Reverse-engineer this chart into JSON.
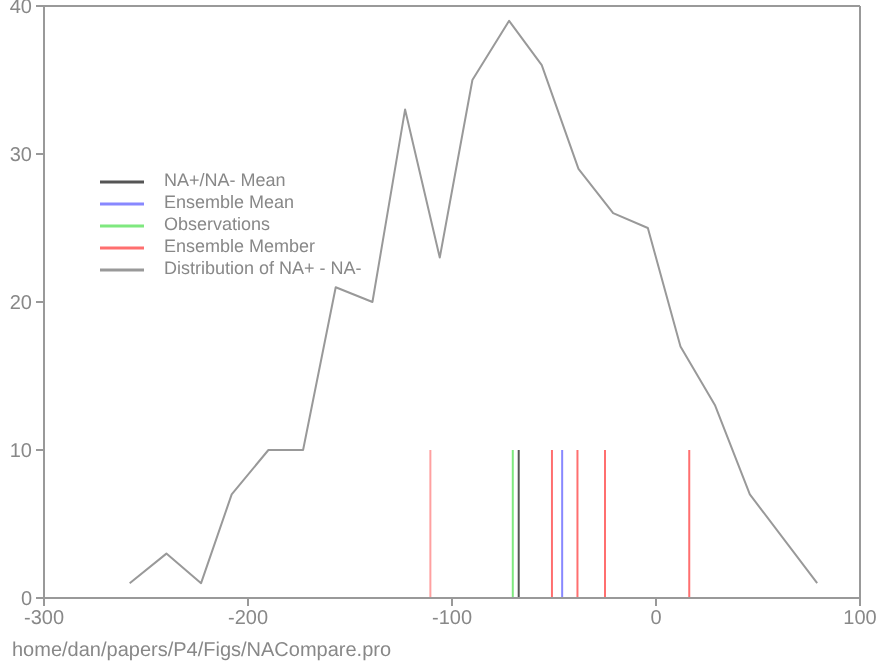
{
  "chart_data": {
    "type": "line",
    "xlim": [
      -300,
      100
    ],
    "xticks": [
      -300,
      -200,
      -100,
      0,
      100
    ],
    "ylim": [
      0,
      40
    ],
    "yticks": [
      0,
      10,
      20,
      30,
      40
    ],
    "legend": "top left",
    "marker": "none",
    "line_style": "solid",
    "annotations": [
      "home/dan/papers/P4/Figs/NACompare.pro"
    ],
    "series": [
      {
        "name": "NA+/NA- Mean",
        "color": "#555555",
        "x": [
          -67.3,
          -67.3
        ],
        "values": [
          0,
          10
        ]
      },
      {
        "name": "Ensemble Mean",
        "color": "#8888ff",
        "x": [
          -46,
          -46
        ],
        "values": [
          0,
          10
        ]
      },
      {
        "name": "Observations",
        "color": "#7fe87f",
        "x": [
          -70.2,
          -70.2
        ],
        "values": [
          0,
          10
        ]
      },
      {
        "name": "Ensemble Member",
        "color": "#ff6f6f",
        "x": [
          -51,
          -51
        ],
        "values": [
          0,
          10
        ]
      },
      {
        "color": "#ffa0a0",
        "x": [
          -110.6,
          -110.6
        ],
        "values": [
          0,
          10
        ]
      },
      {
        "color": "#ff6f6f",
        "x": [
          -38.5,
          -38.5
        ],
        "values": [
          0,
          10
        ]
      },
      {
        "color": "#ff6f6f",
        "x": [
          -25,
          -25
        ],
        "values": [
          0,
          10
        ]
      },
      {
        "color": "#ff6f6f",
        "x": [
          16.3,
          16.3
        ],
        "values": [
          0,
          10
        ]
      },
      {
        "name": "Distribution of NA+ - NA-",
        "color": "#999999",
        "x": [
          -258,
          -240,
          -223,
          -208,
          -190,
          -173,
          -157,
          -139,
          -123,
          -106,
          -90,
          -72,
          -56,
          -38,
          -21,
          -4,
          12,
          29,
          46,
          79
        ],
        "values": [
          1,
          3,
          1,
          7,
          10,
          10,
          21,
          20,
          33,
          23,
          35,
          39,
          36,
          29,
          26,
          25,
          17,
          13,
          7,
          1
        ]
      }
    ]
  }
}
